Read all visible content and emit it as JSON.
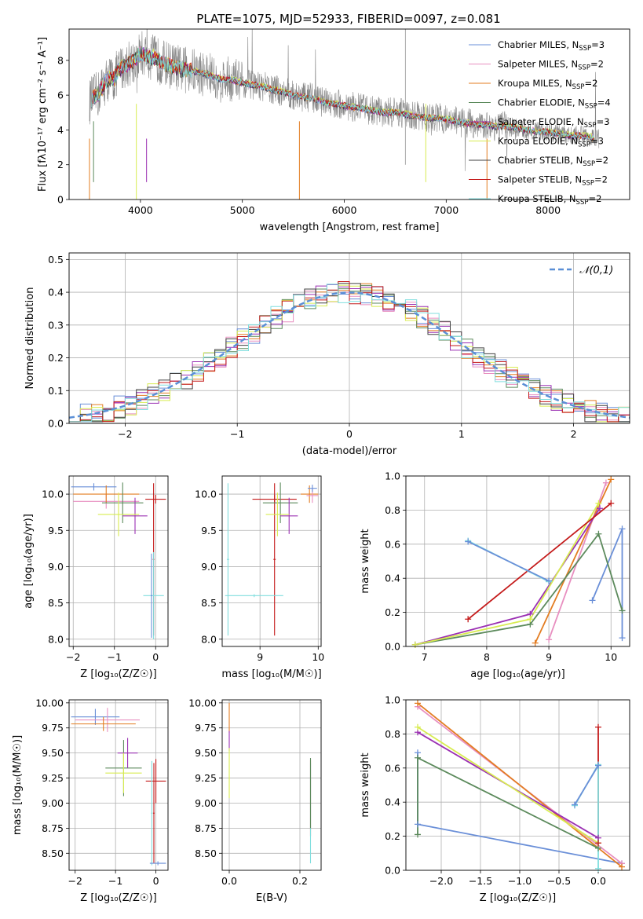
{
  "figure": {
    "title": "PLATE=1075, MJD=52933, FIBERID=0097, z=0.081"
  },
  "chart_data": [
    {
      "id": "spectrum",
      "type": "line",
      "xlabel": "wavelength [Angstrom, rest frame]",
      "ylabel": "Flux [fλ10⁻¹⁷ erg cm⁻² s⁻¹ A⁻¹]",
      "xlim": [
        3300,
        8800
      ],
      "ylim": [
        0,
        9.8
      ],
      "xticks": [
        4000,
        5000,
        6000,
        7000,
        8000
      ],
      "yticks": [
        0,
        2,
        4,
        6,
        8
      ],
      "grid": false,
      "legend_position": "top-right",
      "observed": {
        "x": [
          3500,
          3540,
          3580,
          3620,
          3660,
          3700,
          3740,
          3780,
          3820,
          3860,
          3900,
          3940,
          3980,
          4020,
          4060,
          4100,
          4150,
          4200,
          4300,
          4400,
          4500,
          4600,
          4700,
          4800,
          4900,
          5000,
          5100,
          5200,
          5300,
          5400,
          5500,
          5600,
          5700,
          5800,
          5900,
          6000,
          6100,
          6200,
          6300,
          6400,
          6500,
          6600,
          6700,
          6800,
          6900,
          7000,
          7100,
          7200,
          7300,
          7400,
          7500,
          7600,
          7700,
          7800,
          7900,
          8000,
          8100,
          8200,
          8300,
          8400,
          8500
        ],
        "y": [
          5.6,
          5.9,
          6.0,
          6.4,
          6.8,
          7.0,
          6.9,
          7.4,
          7.6,
          7.7,
          7.9,
          8.0,
          8.3,
          8.4,
          8.3,
          8.2,
          8.1,
          7.9,
          7.7,
          7.5,
          7.4,
          7.3,
          7.1,
          6.9,
          6.9,
          6.7,
          6.6,
          6.5,
          6.3,
          6.2,
          6.0,
          5.9,
          5.8,
          5.6,
          5.5,
          5.4,
          5.3,
          5.2,
          5.1,
          5.0,
          5.0,
          4.9,
          4.8,
          4.7,
          4.7,
          4.6,
          4.5,
          4.4,
          4.3,
          4.3,
          4.2,
          4.2,
          4.1,
          4.0,
          3.9,
          3.9,
          3.8,
          3.7,
          3.7,
          3.6,
          3.5
        ]
      },
      "series": [
        {
          "name": "Chabrier MILES",
          "nssp": "3",
          "color": "#6a8fd8",
          "offset": 0.0
        },
        {
          "name": "Salpeter MILES",
          "nssp": "2",
          "color": "#e88fc0",
          "offset": 0.03
        },
        {
          "name": "Kroupa MILES",
          "nssp": "2",
          "color": "#e37d22",
          "offset": -0.02
        },
        {
          "name": "Chabrier ELODIE",
          "nssp": "4",
          "color": "#5c8a5c",
          "offset": 0.04
        },
        {
          "name": "Salpeter ELODIE",
          "nssp": "3",
          "color": "#9b30b3",
          "offset": -0.03
        },
        {
          "name": "Kroupa ELODIE",
          "nssp": "3",
          "color": "#d8ec50",
          "offset": 0.05
        },
        {
          "name": "Chabrier STELIB",
          "nssp": "2",
          "color": "#404040",
          "offset": -0.05
        },
        {
          "name": "Salpeter STELIB",
          "nssp": "2",
          "color": "#c41a1a",
          "offset": 0.02
        },
        {
          "name": "Kroupa STELIB",
          "nssp": "2",
          "color": "#80dede",
          "offset": -0.01
        }
      ],
      "nssp_label": "N",
      "nssp_sub": "SSP"
    },
    {
      "id": "residuals",
      "type": "line",
      "xlabel": "(data-model)/error",
      "ylabel": "Normed distribution",
      "xlim": [
        -2.5,
        2.5
      ],
      "ylim": [
        0,
        0.52
      ],
      "xticks": [
        -2,
        -1,
        0,
        1,
        2
      ],
      "yticks": [
        0.0,
        0.1,
        0.2,
        0.3,
        0.4,
        0.5
      ],
      "grid": true,
      "legend_position": "top-right",
      "reference_label": "𝒩(0,1)",
      "reference_color": "#5b8fd6",
      "bin_width": 0.1
    },
    {
      "id": "age-vs-Z",
      "type": "scatter",
      "xlabel": "Z [log₁₀(Z/Z☉)]",
      "ylabel": "age  [log₁₀(age/yr)]",
      "xlim": [
        -2.1,
        0.3
      ],
      "ylim": [
        7.9,
        10.25
      ],
      "xticks": [
        -2,
        -1,
        0
      ],
      "yticks": [
        8.0,
        8.5,
        9.0,
        9.5,
        10.0
      ],
      "grid": true,
      "points": [
        {
          "color": "#6a8fd8",
          "x": -1.5,
          "y": 10.1,
          "xerr": 0.55,
          "yerr": 0.05
        },
        {
          "color": "#e88fc0",
          "x": -1.2,
          "y": 9.9,
          "xerr": 0.8,
          "yerr": 0.1
        },
        {
          "color": "#e37d22",
          "x": -1.2,
          "y": 10.0,
          "xerr": 0.8,
          "yerr": 0.12
        },
        {
          "color": "#5c8a5c",
          "x": -0.8,
          "y": 9.88,
          "xerr": 0.5,
          "yerr": 0.28
        },
        {
          "color": "#9b30b3",
          "x": -0.5,
          "y": 9.7,
          "xerr": 0.3,
          "yerr": 0.25
        },
        {
          "color": "#d8ec50",
          "x": -0.9,
          "y": 9.72,
          "xerr": 0.5,
          "yerr": 0.3
        },
        {
          "color": "#c41a1a",
          "x": 0.0,
          "y": 9.93,
          "xerr": 0.25,
          "yerr": 0.06
        },
        {
          "color": "#c41a1a",
          "x": -0.05,
          "y": 9.1,
          "xerr": 0.02,
          "yerr": 1.05
        },
        {
          "color": "#80dede",
          "x": -0.05,
          "y": 8.6,
          "xerr": 0.25,
          "yerr": 0.6
        },
        {
          "color": "#6a8fd8",
          "x": -0.1,
          "y": 8.6,
          "xerr": 0.02,
          "yerr": 0.58
        }
      ]
    },
    {
      "id": "age-vs-mass",
      "type": "scatter",
      "xlabel": "mass [log₁₀(M/M☉)]",
      "ylabel": "",
      "xlim": [
        8.35,
        10.05
      ],
      "ylim": [
        7.9,
        10.25
      ],
      "xticks": [
        9,
        10
      ],
      "yticks": [
        8.0,
        8.5,
        9.0,
        9.5,
        10.0
      ],
      "grid": true,
      "points": [
        {
          "color": "#c41a1a",
          "x": 9.25,
          "y": 9.93,
          "xerr": 0.38,
          "yerr": 0.06
        },
        {
          "color": "#c41a1a",
          "x": 9.25,
          "y": 9.1,
          "xerr": 0.02,
          "yerr": 1.05
        },
        {
          "color": "#5c8a5c",
          "x": 9.35,
          "y": 9.88,
          "xerr": 0.3,
          "yerr": 0.28
        },
        {
          "color": "#9b30b3",
          "x": 9.5,
          "y": 9.7,
          "xerr": 0.15,
          "yerr": 0.25
        },
        {
          "color": "#d8ec50",
          "x": 9.3,
          "y": 9.72,
          "xerr": 0.2,
          "yerr": 0.3
        },
        {
          "color": "#e37d22",
          "x": 9.85,
          "y": 10.0,
          "xerr": 0.15,
          "yerr": 0.12
        },
        {
          "color": "#e88fc0",
          "x": 9.9,
          "y": 9.98,
          "xerr": 0.1,
          "yerr": 0.1
        },
        {
          "color": "#6a8fd8",
          "x": 9.9,
          "y": 10.08,
          "xerr": 0.08,
          "yerr": 0.05
        },
        {
          "color": "#80dede",
          "x": 8.45,
          "y": 9.1,
          "xerr": 0.02,
          "yerr": 1.05
        },
        {
          "color": "#80dede",
          "x": 8.9,
          "y": 8.6,
          "xerr": 0.5,
          "yerr": 0.02
        }
      ]
    },
    {
      "id": "weight-vs-age",
      "type": "line",
      "xlabel": "age  [log₁₀(age/yr)]",
      "ylabel": "mass weight",
      "xlim": [
        6.7,
        10.3
      ],
      "ylim": [
        0.0,
        1.0
      ],
      "xticks": [
        7,
        8,
        9,
        10
      ],
      "yticks": [
        0.0,
        0.2,
        0.4,
        0.6,
        0.8,
        1.0
      ],
      "grid": true,
      "series": [
        {
          "color": "#6a8fd8",
          "x": [
            9.7,
            10.18
          ],
          "y": [
            0.27,
            0.69
          ],
          "extra": [
            [
              10.18,
              0.05
            ]
          ]
        },
        {
          "color": "#e88fc0",
          "x": [
            9.0,
            9.92
          ],
          "y": [
            0.04,
            0.96
          ]
        },
        {
          "color": "#e37d22",
          "x": [
            8.78,
            10.0
          ],
          "y": [
            0.02,
            0.98
          ]
        },
        {
          "color": "#5c8a5c",
          "x": [
            6.85,
            8.7,
            9.8,
            10.18
          ],
          "y": [
            0.01,
            0.13,
            0.66,
            0.21
          ]
        },
        {
          "color": "#9b30b3",
          "x": [
            6.85,
            8.7,
            9.82
          ],
          "y": [
            0.01,
            0.19,
            0.81
          ]
        },
        {
          "color": "#d8ec50",
          "x": [
            6.85,
            8.7,
            9.8
          ],
          "y": [
            0.01,
            0.16,
            0.84
          ]
        },
        {
          "color": "#c41a1a",
          "x": [
            7.7,
            10.0
          ],
          "y": [
            0.16,
            0.84
          ]
        },
        {
          "color": "#80dede",
          "x": [
            7.7,
            9.0
          ],
          "y": [
            0.62,
            0.38
          ]
        },
        {
          "color": "#6a8fd8",
          "x": [
            7.7,
            9.0
          ],
          "y": [
            0.615,
            0.385
          ]
        }
      ]
    },
    {
      "id": "mass-vs-Z",
      "type": "scatter",
      "xlabel": "Z [log₁₀(Z/Z☉)]",
      "ylabel": "mass [log₁₀(M/M☉)]",
      "xlim": [
        -2.15,
        0.3
      ],
      "ylim": [
        8.33,
        10.03
      ],
      "xticks": [
        -2,
        -1,
        0
      ],
      "yticks": [
        8.5,
        8.75,
        9.0,
        9.25,
        9.5,
        9.75,
        10.0
      ],
      "grid": true,
      "points": [
        {
          "color": "#6a8fd8",
          "x": -1.5,
          "y": 9.86,
          "xerr": 0.6,
          "yerr": 0.08
        },
        {
          "color": "#e88fc0",
          "x": -1.2,
          "y": 9.83,
          "xerr": 0.8,
          "yerr": 0.12
        },
        {
          "color": "#e37d22",
          "x": -1.3,
          "y": 9.79,
          "xerr": 0.8,
          "yerr": 0.07
        },
        {
          "color": "#5c8a5c",
          "x": -0.8,
          "y": 9.35,
          "xerr": 0.45,
          "yerr": 0.28
        },
        {
          "color": "#9b30b3",
          "x": -0.7,
          "y": 9.5,
          "xerr": 0.25,
          "yerr": 0.15
        },
        {
          "color": "#d8ec50",
          "x": -0.8,
          "y": 9.3,
          "xerr": 0.45,
          "yerr": 0.2
        },
        {
          "color": "#c41a1a",
          "x": 0.0,
          "y": 9.22,
          "xerr": 0.25,
          "yerr": 0.22
        },
        {
          "color": "#c41a1a",
          "x": -0.05,
          "y": 8.9,
          "xerr": 0.02,
          "yerr": 0.5
        },
        {
          "color": "#80dede",
          "x": -0.1,
          "y": 8.9,
          "xerr": 0.02,
          "yerr": 0.52
        },
        {
          "color": "#6a8fd8",
          "x": 0.05,
          "y": 8.4,
          "xerr": 0.2,
          "yerr": 0.02
        }
      ]
    },
    {
      "id": "mass-vs-ebv",
      "type": "scatter",
      "xlabel": "E(B-V)",
      "ylabel": "",
      "xlim": [
        -0.02,
        0.26
      ],
      "ylim": [
        8.33,
        10.03
      ],
      "xticks": [
        0.0,
        0.2
      ],
      "yticks": [
        8.5,
        8.75,
        9.0,
        9.25,
        9.5,
        9.75,
        10.0
      ],
      "grid": true,
      "points": [
        {
          "color": "#e37d22",
          "x": 0.0,
          "y": 9.85,
          "xerr": 0.0,
          "yerr": 0.15
        },
        {
          "color": "#9b30b3",
          "x": 0.0,
          "y": 9.62,
          "xerr": 0.0,
          "yerr": 0.1
        },
        {
          "color": "#d8ec50",
          "x": 0.0,
          "y": 9.3,
          "xerr": 0.0,
          "yerr": 0.25
        },
        {
          "color": "#c41a1a",
          "x": 0.23,
          "y": 9.05,
          "xerr": 0.0,
          "yerr": 0.38
        },
        {
          "color": "#80dede",
          "x": 0.23,
          "y": 8.9,
          "xerr": 0.0,
          "yerr": 0.5
        },
        {
          "color": "#5c8a5c",
          "x": 0.23,
          "y": 9.1,
          "xerr": 0.0,
          "yerr": 0.35
        }
      ]
    },
    {
      "id": "weight-vs-Z",
      "type": "line",
      "xlabel": "Z [log₁₀(Z/Z☉)]",
      "ylabel": "mass weight",
      "xlim": [
        -2.45,
        0.4
      ],
      "ylim": [
        0.0,
        1.0
      ],
      "xticks": [
        -2.0,
        -1.5,
        -1.0,
        -0.5,
        0.0
      ],
      "yticks": [
        0.0,
        0.2,
        0.4,
        0.6,
        0.8,
        1.0
      ],
      "grid": true,
      "series": [
        {
          "color": "#6a8fd8",
          "x": [
            -2.3,
            -2.3,
            0.3
          ],
          "y": [
            0.69,
            0.27,
            0.04
          ]
        },
        {
          "color": "#e88fc0",
          "x": [
            -2.3,
            0.3
          ],
          "y": [
            0.96,
            0.04
          ]
        },
        {
          "color": "#e37d22",
          "x": [
            -2.3,
            0.3
          ],
          "y": [
            0.98,
            0.02
          ]
        },
        {
          "color": "#5c8a5c",
          "x": [
            -2.3,
            -2.3,
            0.0
          ],
          "y": [
            0.21,
            0.66,
            0.13
          ]
        },
        {
          "color": "#9b30b3",
          "x": [
            -2.3,
            0.0
          ],
          "y": [
            0.81,
            0.19
          ]
        },
        {
          "color": "#d8ec50",
          "x": [
            -2.3,
            0.0
          ],
          "y": [
            0.84,
            0.16
          ]
        },
        {
          "color": "#c41a1a",
          "x": [
            0.0,
            0.0
          ],
          "y": [
            0.84,
            0.16
          ]
        },
        {
          "color": "#80dede",
          "x": [
            -0.3,
            0.0,
            0.0
          ],
          "y": [
            0.38,
            0.62,
            0.01
          ]
        },
        {
          "color": "#6a8fd8",
          "x": [
            -0.3,
            0.0
          ],
          "y": [
            0.385,
            0.615
          ]
        }
      ]
    }
  ]
}
